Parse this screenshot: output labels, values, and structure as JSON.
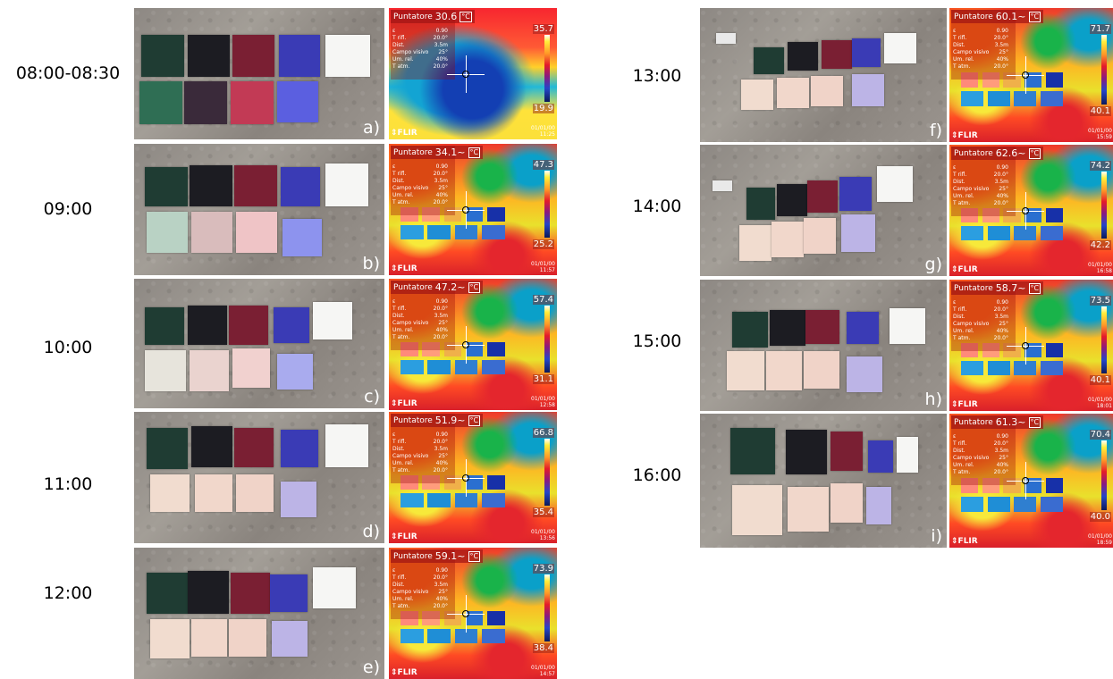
{
  "panels": [
    {
      "time": "08:00-08:30",
      "label": "a)",
      "pointer": "30.6",
      "pointer_suffix": "",
      "max": "35.7",
      "min": "19.9",
      "date": "01/01/00",
      "clock": "11:25"
    },
    {
      "time": "09:00",
      "label": "b)",
      "pointer": "34.1",
      "pointer_suffix": "~",
      "max": "47.3",
      "min": "25.2",
      "date": "01/01/00",
      "clock": "11:57"
    },
    {
      "time": "10:00",
      "label": "c)",
      "pointer": "47.2",
      "pointer_suffix": "~",
      "max": "57.4",
      "min": "31.1",
      "date": "01/01/00",
      "clock": "12:58"
    },
    {
      "time": "11:00",
      "label": "d)",
      "pointer": "51.9",
      "pointer_suffix": "~",
      "max": "66.8",
      "min": "35.4",
      "date": "01/01/00",
      "clock": "13:56"
    },
    {
      "time": "12:00",
      "label": "e)",
      "pointer": "59.1",
      "pointer_suffix": "~",
      "max": "73.9",
      "min": "38.4",
      "date": "01/01/00",
      "clock": "14:57"
    },
    {
      "time": "13:00",
      "label": "f)",
      "pointer": "60.1",
      "pointer_suffix": "~",
      "max": "71.7",
      "min": "40.1",
      "date": "01/01/00",
      "clock": "15:59"
    },
    {
      "time": "14:00",
      "label": "g)",
      "pointer": "62.6",
      "pointer_suffix": "~",
      "max": "74.2",
      "min": "42.2",
      "date": "01/01/00",
      "clock": "16:58"
    },
    {
      "time": "15:00",
      "label": "h)",
      "pointer": "58.7",
      "pointer_suffix": "~",
      "max": "73.5",
      "min": "40.1",
      "date": "01/01/00",
      "clock": "18:01"
    },
    {
      "time": "16:00",
      "label": "i)",
      "pointer": "61.3",
      "pointer_suffix": "~",
      "max": "70.4",
      "min": "40.0",
      "date": "01/01/00",
      "clock": "18:59"
    }
  ],
  "overlay": {
    "pointer_label": "Puntatore",
    "unit": "°C",
    "brand": "FLIR",
    "params": [
      {
        "k": "ε",
        "v": "0.90"
      },
      {
        "k": "T rifl.",
        "v": "20.0°"
      },
      {
        "k": "Dist.",
        "v": "3.5m"
      },
      {
        "k": "Campo visivo",
        "v": "25°"
      },
      {
        "k": "Um. rel.",
        "v": "40%"
      },
      {
        "k": "T atm.",
        "v": "20.0°"
      }
    ]
  },
  "colors": {
    "top_row": [
      "#1f3c33",
      "#1c1c22",
      "#7a1f33",
      "#3a3bb5",
      "#f6f6f4"
    ],
    "bottom_row_a": [
      "#2f6e54",
      "#3a2a3a",
      "#c23a55",
      "#5b5fe0"
    ],
    "bottom_row_b": [
      "#b9d2c4",
      "#d9bcbc",
      "#efc4c6",
      "#8d93ee"
    ],
    "bottom_row_c": [
      "#e7e4dc",
      "#ead3cf",
      "#f1d1cf",
      "#a9abee"
    ],
    "bottom_row_d": [
      "#f1dccf",
      "#f1d7cb",
      "#f0d3c8",
      "#bcb4e6"
    ]
  }
}
